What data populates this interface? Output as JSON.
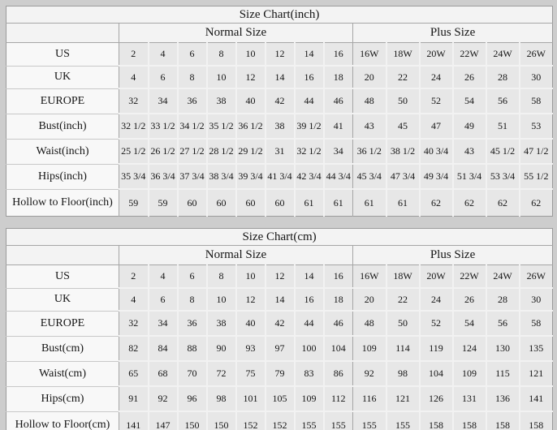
{
  "chart_data": [
    {
      "type": "table",
      "title": "Size Chart(inch)",
      "group_headers": [
        {
          "label": "Normal Size",
          "span": 8
        },
        {
          "label": "Plus Size",
          "span": 6
        }
      ],
      "rows": [
        {
          "label": "US",
          "values": [
            "2",
            "4",
            "6",
            "8",
            "10",
            "12",
            "14",
            "16",
            "16W",
            "18W",
            "20W",
            "22W",
            "24W",
            "26W"
          ]
        },
        {
          "label": "UK",
          "values": [
            "4",
            "6",
            "8",
            "10",
            "12",
            "14",
            "16",
            "18",
            "20",
            "22",
            "24",
            "26",
            "28",
            "30"
          ]
        },
        {
          "label": "EUROPE",
          "values": [
            "32",
            "34",
            "36",
            "38",
            "40",
            "42",
            "44",
            "46",
            "48",
            "50",
            "52",
            "54",
            "56",
            "58"
          ]
        },
        {
          "label": "Bust(inch)",
          "values": [
            "32 1/2",
            "33 1/2",
            "34 1/2",
            "35 1/2",
            "36 1/2",
            "38",
            "39 1/2",
            "41",
            "43",
            "45",
            "47",
            "49",
            "51",
            "53"
          ]
        },
        {
          "label": "Waist(inch)",
          "values": [
            "25 1/2",
            "26 1/2",
            "27 1/2",
            "28 1/2",
            "29 1/2",
            "31",
            "32 1/2",
            "34",
            "36 1/2",
            "38 1/2",
            "40 3/4",
            "43",
            "45 1/2",
            "47 1/2"
          ]
        },
        {
          "label": "Hips(inch)",
          "values": [
            "35 3/4",
            "36 3/4",
            "37 3/4",
            "38 3/4",
            "39 3/4",
            "41 3/4",
            "42 3/4",
            "44 3/4",
            "45 3/4",
            "47 3/4",
            "49 3/4",
            "51 3/4",
            "53 3/4",
            "55 1/2"
          ]
        },
        {
          "label": "Hollow to Floor(inch)",
          "values": [
            "59",
            "59",
            "60",
            "60",
            "60",
            "60",
            "61",
            "61",
            "61",
            "61",
            "62",
            "62",
            "62",
            "62"
          ]
        }
      ]
    },
    {
      "type": "table",
      "title": "Size Chart(cm)",
      "group_headers": [
        {
          "label": "Normal Size",
          "span": 8
        },
        {
          "label": "Plus Size",
          "span": 6
        }
      ],
      "rows": [
        {
          "label": "US",
          "values": [
            "2",
            "4",
            "6",
            "8",
            "10",
            "12",
            "14",
            "16",
            "16W",
            "18W",
            "20W",
            "22W",
            "24W",
            "26W"
          ]
        },
        {
          "label": "UK",
          "values": [
            "4",
            "6",
            "8",
            "10",
            "12",
            "14",
            "16",
            "18",
            "20",
            "22",
            "24",
            "26",
            "28",
            "30"
          ]
        },
        {
          "label": "EUROPE",
          "values": [
            "32",
            "34",
            "36",
            "38",
            "40",
            "42",
            "44",
            "46",
            "48",
            "50",
            "52",
            "54",
            "56",
            "58"
          ]
        },
        {
          "label": "Bust(cm)",
          "values": [
            "82",
            "84",
            "88",
            "90",
            "93",
            "97",
            "100",
            "104",
            "109",
            "114",
            "119",
            "124",
            "130",
            "135"
          ]
        },
        {
          "label": "Waist(cm)",
          "values": [
            "65",
            "68",
            "70",
            "72",
            "75",
            "79",
            "83",
            "86",
            "92",
            "98",
            "104",
            "109",
            "115",
            "121"
          ]
        },
        {
          "label": "Hips(cm)",
          "values": [
            "91",
            "92",
            "96",
            "98",
            "101",
            "105",
            "109",
            "112",
            "116",
            "121",
            "126",
            "131",
            "136",
            "141"
          ]
        },
        {
          "label": "Hollow to Floor(cm)",
          "values": [
            "141",
            "147",
            "150",
            "150",
            "152",
            "152",
            "155",
            "155",
            "155",
            "155",
            "158",
            "158",
            "158",
            "158"
          ]
        }
      ]
    }
  ],
  "colors": {
    "page_background": "#cdcdcd",
    "header_background": "#f3f3f3",
    "label_background": "#f8f8f8",
    "cell_background": "#e7e7e7",
    "outer_border": "#9b9b9b"
  }
}
